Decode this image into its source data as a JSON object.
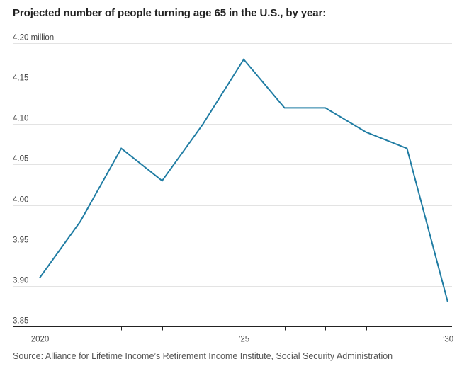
{
  "chart_data": {
    "type": "line",
    "title": "Projected number of people turning age 65 in the U.S., by year:",
    "source": "Source: Alliance for Lifetime Income’s Retirement Income Institute, Social Security Administration",
    "x": [
      2020,
      2021,
      2022,
      2023,
      2024,
      2025,
      2026,
      2027,
      2028,
      2029,
      2030
    ],
    "series": [
      {
        "values": [
          3.91,
          3.98,
          4.07,
          4.03,
          4.1,
          4.18,
          4.12,
          4.12,
          4.09,
          4.07,
          3.88
        ]
      }
    ],
    "ylim": [
      3.85,
      4.2
    ],
    "xlim": [
      2020,
      2030
    ],
    "yticks": [
      {
        "value": 3.85,
        "label": "3.85"
      },
      {
        "value": 3.9,
        "label": "3.90"
      },
      {
        "value": 3.95,
        "label": "3.95"
      },
      {
        "value": 4.0,
        "label": "4.00"
      },
      {
        "value": 4.05,
        "label": "4.05"
      },
      {
        "value": 4.1,
        "label": "4.10"
      },
      {
        "value": 4.15,
        "label": "4.15"
      },
      {
        "value": 4.2,
        "label": "4.20 million"
      }
    ],
    "xticks": [
      {
        "value": 2020,
        "label": "2020"
      },
      {
        "value": 2025,
        "label": "’25"
      },
      {
        "value": 2030,
        "label": "’30"
      }
    ],
    "minor_xticks": [
      2021,
      2022,
      2023,
      2024,
      2026,
      2027,
      2028,
      2029
    ],
    "grid": true,
    "line_color": "#1f7ca3",
    "axis_color": "#222222"
  }
}
